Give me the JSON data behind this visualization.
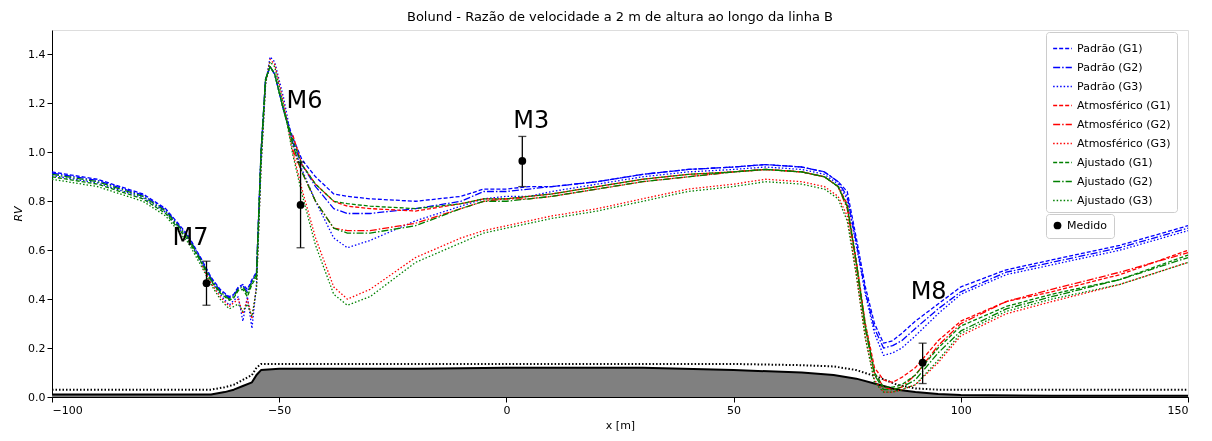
{
  "chart_data": {
    "type": "line",
    "title": "Bolund - Razão de velocidade a 2 m de altura ao longo da linha B",
    "xlabel": "x [m]",
    "ylabel": "RV",
    "xlim": [
      -100,
      150
    ],
    "ylim": [
      0,
      1.5
    ],
    "xticks": [
      {
        "value": -100,
        "label": "−100"
      },
      {
        "value": -50,
        "label": "−50"
      },
      0,
      50,
      100,
      150
    ],
    "yticks": [
      {
        "value": 0,
        "label": "0.0"
      },
      {
        "value": 0.2,
        "label": "0.2"
      },
      {
        "value": 0.4,
        "label": "0.4"
      },
      {
        "value": 0.6,
        "label": "0.6"
      },
      {
        "value": 0.8,
        "label": "0.8"
      },
      {
        "value": 1.0,
        "label": "1.0"
      },
      {
        "value": 1.2,
        "label": "1.2"
      },
      {
        "value": 1.4,
        "label": "1.4"
      }
    ],
    "grid": false,
    "legend": "top right",
    "annotations": [
      "M7",
      "M6",
      "M3",
      "M8"
    ],
    "series": [
      {
        "type": "area",
        "color": "#808080",
        "x": [
          -100,
          -80,
          -65,
          -62,
          -60,
          -58,
          -56,
          -55,
          -54,
          -50,
          -20,
          0,
          30,
          50,
          65,
          72,
          77,
          82,
          86,
          90,
          95,
          100,
          120,
          150
        ],
        "values": [
          0.01,
          0.01,
          0.01,
          0.02,
          0.03,
          0.045,
          0.06,
          0.09,
          0.11,
          0.115,
          0.115,
          0.12,
          0.12,
          0.11,
          0.1,
          0.09,
          0.075,
          0.05,
          0.03,
          0.02,
          0.012,
          0.008,
          0.005,
          0.005
        ]
      },
      {
        "type": "line",
        "color": "#000000",
        "line_style": "dotted",
        "x": [
          -100,
          -80,
          -65,
          -62,
          -60,
          -58,
          -56,
          -55,
          -54,
          -50,
          0,
          50,
          65,
          72,
          77,
          82,
          86,
          90,
          95,
          100,
          150
        ],
        "values": [
          0.03,
          0.03,
          0.03,
          0.04,
          0.05,
          0.07,
          0.09,
          0.12,
          0.135,
          0.135,
          0.135,
          0.135,
          0.13,
          0.125,
          0.11,
          0.08,
          0.05,
          0.035,
          0.03,
          0.03,
          0.03
        ]
      },
      {
        "name": "Padrão (G1)",
        "color": "#0000ff",
        "line_style": "dashed",
        "x": [
          -100,
          -90,
          -80,
          -75,
          -70,
          -67,
          -65,
          -63,
          -61,
          -60,
          -59,
          -58,
          -57,
          -56,
          -55,
          -54,
          -53,
          -52,
          -51,
          -49,
          -47,
          -45,
          -42,
          -38,
          -35,
          -30,
          -20,
          -10,
          -5,
          0,
          5,
          10,
          20,
          30,
          40,
          50,
          57,
          65,
          70,
          73,
          75,
          77,
          79,
          81,
          83,
          85,
          87,
          90,
          95,
          100,
          110,
          120,
          135,
          150
        ],
        "values": [
          0.92,
          0.89,
          0.83,
          0.77,
          0.66,
          0.56,
          0.49,
          0.44,
          0.41,
          0.42,
          0.45,
          0.46,
          0.44,
          0.48,
          0.51,
          1.0,
          1.3,
          1.35,
          1.32,
          1.17,
          1.06,
          0.97,
          0.9,
          0.83,
          0.82,
          0.81,
          0.8,
          0.82,
          0.85,
          0.85,
          0.86,
          0.86,
          0.88,
          0.91,
          0.93,
          0.94,
          0.95,
          0.94,
          0.92,
          0.88,
          0.84,
          0.65,
          0.45,
          0.3,
          0.22,
          0.23,
          0.26,
          0.31,
          0.38,
          0.45,
          0.52,
          0.56,
          0.62,
          0.7
        ]
      },
      {
        "name": "Padrão (G2)",
        "color": "#0000ff",
        "line_style": "dashdot",
        "x": [
          -100,
          -90,
          -80,
          -75,
          -70,
          -67,
          -65,
          -63,
          -61,
          -60,
          -59,
          -58,
          -57,
          -56,
          -55,
          -54,
          -53,
          -52,
          -51,
          -49,
          -47,
          -45,
          -42,
          -38,
          -35,
          -30,
          -20,
          -10,
          -5,
          0,
          5,
          10,
          20,
          30,
          40,
          50,
          57,
          65,
          70,
          73,
          75,
          77,
          79,
          81,
          83,
          85,
          87,
          90,
          95,
          100,
          110,
          120,
          135,
          150
        ],
        "values": [
          0.915,
          0.885,
          0.825,
          0.765,
          0.655,
          0.555,
          0.485,
          0.435,
          0.405,
          0.415,
          0.445,
          0.455,
          0.43,
          0.475,
          0.505,
          1.0,
          1.3,
          1.35,
          1.32,
          1.17,
          1.04,
          0.95,
          0.86,
          0.77,
          0.75,
          0.75,
          0.77,
          0.8,
          0.84,
          0.84,
          0.85,
          0.86,
          0.88,
          0.91,
          0.93,
          0.94,
          0.95,
          0.94,
          0.92,
          0.88,
          0.82,
          0.63,
          0.43,
          0.28,
          0.2,
          0.21,
          0.23,
          0.28,
          0.36,
          0.43,
          0.51,
          0.55,
          0.61,
          0.69
        ]
      },
      {
        "name": "Padrão (G3)",
        "color": "#0000ff",
        "line_style": "dotted",
        "x": [
          -100,
          -90,
          -80,
          -75,
          -70,
          -67,
          -65,
          -63,
          -61,
          -60,
          -59,
          -58,
          -57,
          -56,
          -55,
          -54,
          -53,
          -52,
          -51,
          -49,
          -47,
          -45,
          -42,
          -38,
          -35,
          -30,
          -20,
          -10,
          -5,
          0,
          5,
          10,
          20,
          30,
          40,
          50,
          57,
          65,
          70,
          73,
          75,
          77,
          79,
          81,
          83,
          85,
          87,
          90,
          95,
          100,
          110,
          120,
          135,
          150
        ],
        "values": [
          0.905,
          0.875,
          0.815,
          0.755,
          0.645,
          0.545,
          0.475,
          0.42,
          0.375,
          0.395,
          0.41,
          0.31,
          0.41,
          0.28,
          0.46,
          0.95,
          1.28,
          1.39,
          1.37,
          1.22,
          1.03,
          0.93,
          0.8,
          0.65,
          0.61,
          0.64,
          0.72,
          0.78,
          0.81,
          0.82,
          0.82,
          0.84,
          0.87,
          0.9,
          0.92,
          0.93,
          0.94,
          0.93,
          0.91,
          0.87,
          0.81,
          0.62,
          0.42,
          0.26,
          0.17,
          0.18,
          0.2,
          0.25,
          0.34,
          0.42,
          0.5,
          0.54,
          0.6,
          0.68
        ]
      },
      {
        "name": "Atmosférico (G1)",
        "color": "#ff0000",
        "line_style": "dashed",
        "x": [
          -47,
          -45,
          -42,
          -38,
          -35,
          -30,
          -20,
          -10,
          -5,
          0,
          5,
          10,
          20,
          30,
          40,
          50,
          57,
          65,
          70,
          73,
          75,
          77,
          79,
          81,
          83,
          85,
          87,
          90,
          95,
          100,
          110,
          120,
          135,
          150
        ],
        "values": [
          1.07,
          0.95,
          0.87,
          0.8,
          0.78,
          0.77,
          0.76,
          0.79,
          0.81,
          0.81,
          0.82,
          0.83,
          0.86,
          0.89,
          0.91,
          0.92,
          0.93,
          0.92,
          0.9,
          0.86,
          0.79,
          0.56,
          0.3,
          0.12,
          0.07,
          0.06,
          0.08,
          0.12,
          0.23,
          0.31,
          0.39,
          0.43,
          0.5,
          0.6
        ]
      },
      {
        "name": "Atmosférico (G2)",
        "color": "#ff0000",
        "line_style": "dashdot",
        "x": [
          -47,
          -45,
          -42,
          -38,
          -35,
          -30,
          -20,
          -10,
          -5,
          0,
          5,
          10,
          20,
          30,
          40,
          50,
          57,
          65,
          70,
          73,
          75,
          77,
          79,
          81,
          83,
          85,
          87,
          90,
          95,
          100,
          110,
          120,
          135,
          150
        ],
        "values": [
          1.01,
          0.92,
          0.8,
          0.69,
          0.68,
          0.68,
          0.71,
          0.77,
          0.8,
          0.81,
          0.81,
          0.82,
          0.85,
          0.88,
          0.9,
          0.92,
          0.93,
          0.92,
          0.9,
          0.86,
          0.77,
          0.54,
          0.28,
          0.1,
          0.04,
          0.03,
          0.04,
          0.09,
          0.21,
          0.3,
          0.39,
          0.44,
          0.51,
          0.59
        ]
      },
      {
        "name": "Atmosférico (G3)",
        "color": "#ff0000",
        "line_style": "dotted",
        "x": [
          -67,
          -65,
          -63,
          -61,
          -60,
          -59,
          -58,
          -57,
          -56,
          -55,
          -54,
          -53,
          -52,
          -51,
          -49,
          -47,
          -45,
          -42,
          -38,
          -35,
          -30,
          -20,
          -10,
          -5,
          0,
          5,
          10,
          20,
          30,
          40,
          50,
          57,
          65,
          70,
          73,
          75,
          77,
          79,
          81,
          83,
          85,
          87,
          90,
          95,
          100,
          110,
          120,
          135,
          150
        ],
        "values": [
          0.535,
          0.465,
          0.41,
          0.37,
          0.385,
          0.4,
          0.34,
          0.4,
          0.32,
          0.45,
          0.95,
          1.28,
          1.38,
          1.36,
          1.2,
          1.0,
          0.85,
          0.65,
          0.45,
          0.4,
          0.44,
          0.57,
          0.65,
          0.68,
          0.7,
          0.72,
          0.74,
          0.77,
          0.81,
          0.85,
          0.87,
          0.89,
          0.88,
          0.86,
          0.82,
          0.74,
          0.5,
          0.24,
          0.07,
          0.02,
          0.02,
          0.03,
          0.05,
          0.14,
          0.25,
          0.34,
          0.39,
          0.46,
          0.55
        ]
      },
      {
        "name": "Ajustado (G1)",
        "color": "#008000",
        "line_style": "dashed",
        "x": [
          -100,
          -90,
          -80,
          -75,
          -70,
          -67,
          -65,
          -63,
          -61,
          -60,
          -59,
          -58,
          -57,
          -56,
          -55,
          -54,
          -53,
          -52,
          -51,
          -49,
          -47,
          -45,
          -42,
          -38,
          -35,
          -30,
          -20,
          -10,
          -5,
          0,
          5,
          10,
          20,
          30,
          40,
          50,
          57,
          65,
          70,
          73,
          75,
          77,
          79,
          81,
          83,
          85,
          87,
          90,
          95,
          100,
          110,
          120,
          135,
          150
        ],
        "values": [
          0.9,
          0.87,
          0.81,
          0.75,
          0.64,
          0.545,
          0.475,
          0.425,
          0.395,
          0.405,
          0.435,
          0.44,
          0.41,
          0.46,
          0.49,
          1.0,
          1.3,
          1.35,
          1.32,
          1.17,
          1.05,
          0.95,
          0.87,
          0.8,
          0.79,
          0.78,
          0.77,
          0.79,
          0.81,
          0.81,
          0.82,
          0.83,
          0.86,
          0.89,
          0.91,
          0.92,
          0.93,
          0.92,
          0.9,
          0.86,
          0.78,
          0.55,
          0.29,
          0.1,
          0.04,
          0.04,
          0.05,
          0.09,
          0.2,
          0.29,
          0.37,
          0.42,
          0.48,
          0.58
        ]
      },
      {
        "name": "Ajustado (G2)",
        "color": "#008000",
        "line_style": "dashdot",
        "x": [
          -100,
          -90,
          -80,
          -75,
          -70,
          -67,
          -65,
          -63,
          -61,
          -60,
          -59,
          -58,
          -57,
          -56,
          -55,
          -54,
          -53,
          -52,
          -51,
          -49,
          -47,
          -45,
          -42,
          -38,
          -35,
          -30,
          -20,
          -10,
          -5,
          0,
          5,
          10,
          20,
          30,
          40,
          50,
          57,
          65,
          70,
          73,
          75,
          77,
          79,
          81,
          83,
          85,
          87,
          90,
          95,
          100,
          110,
          120,
          135,
          150
        ],
        "values": [
          0.91,
          0.88,
          0.82,
          0.76,
          0.65,
          0.55,
          0.48,
          0.43,
          0.4,
          0.41,
          0.44,
          0.45,
          0.42,
          0.47,
          0.5,
          1.0,
          1.3,
          1.35,
          1.32,
          1.17,
          1.03,
          0.92,
          0.8,
          0.69,
          0.67,
          0.67,
          0.7,
          0.77,
          0.8,
          0.8,
          0.81,
          0.82,
          0.85,
          0.88,
          0.9,
          0.92,
          0.93,
          0.92,
          0.9,
          0.86,
          0.78,
          0.55,
          0.28,
          0.09,
          0.03,
          0.03,
          0.04,
          0.07,
          0.18,
          0.27,
          0.36,
          0.41,
          0.48,
          0.57
        ]
      },
      {
        "name": "Ajustado (G3)",
        "color": "#008000",
        "line_style": "dotted",
        "x": [
          -100,
          -90,
          -80,
          -75,
          -70,
          -67,
          -65,
          -63,
          -61,
          -60,
          -59,
          -58,
          -57,
          -56,
          -55,
          -54,
          -53,
          -52,
          -51,
          -49,
          -47,
          -45,
          -42,
          -38,
          -35,
          -30,
          -20,
          -10,
          -5,
          0,
          5,
          10,
          20,
          30,
          40,
          50,
          57,
          65,
          70,
          73,
          75,
          77,
          79,
          81,
          83,
          85,
          87,
          90,
          95,
          100,
          110,
          120,
          135,
          150
        ],
        "values": [
          0.89,
          0.86,
          0.8,
          0.74,
          0.63,
          0.53,
          0.46,
          0.4,
          0.36,
          0.37,
          0.38,
          0.35,
          0.38,
          0.33,
          0.44,
          0.94,
          1.28,
          1.37,
          1.35,
          1.19,
          0.99,
          0.83,
          0.62,
          0.42,
          0.375,
          0.41,
          0.55,
          0.63,
          0.67,
          0.69,
          0.71,
          0.73,
          0.76,
          0.8,
          0.84,
          0.86,
          0.88,
          0.87,
          0.85,
          0.81,
          0.72,
          0.5,
          0.24,
          0.06,
          0.02,
          0.02,
          0.03,
          0.05,
          0.15,
          0.26,
          0.35,
          0.4,
          0.46,
          0.55
        ]
      },
      {
        "name": "Medido",
        "type": "scatter",
        "color": "#000000",
        "marker": "circle",
        "x": [
          -66,
          -45.3,
          3.5,
          91.6
        ],
        "values": [
          0.465,
          0.785,
          0.965,
          0.14
        ],
        "errors": [
          [
            0.375,
            0.555
          ],
          [
            0.61,
            0.96
          ],
          [
            0.86,
            1.065
          ],
          [
            0.055,
            0.22
          ]
        ]
      }
    ]
  }
}
